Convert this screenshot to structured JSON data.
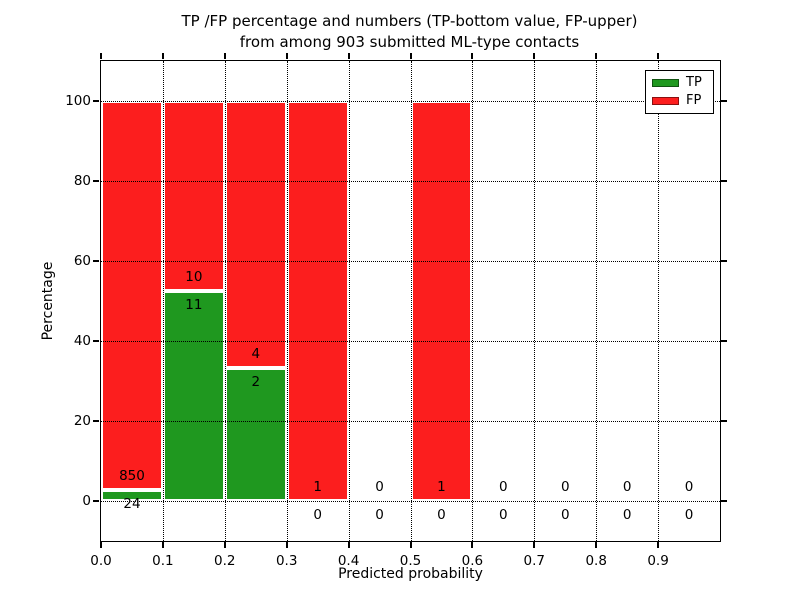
{
  "chart_data": {
    "type": "bar",
    "variant": "stacked-percentage-histogram",
    "title": "TP /FP percentage and numbers (TP-bottom value, FP-upper)\nfrom among 903 submitted ML-type contacts",
    "title_lines": [
      "TP /FP percentage and numbers (TP-bottom value, FP-upper)",
      "from among 903 submitted ML-type contacts"
    ],
    "xlabel": "Predicted probability",
    "ylabel": "Percentage",
    "xlim": [
      0.0,
      1.0
    ],
    "ylim": [
      -10,
      110
    ],
    "grid": "dotted",
    "yticks": [
      {
        "v": 0,
        "label": "0"
      },
      {
        "v": 20,
        "label": "20"
      },
      {
        "v": 40,
        "label": "40"
      },
      {
        "v": 60,
        "label": "60"
      },
      {
        "v": 80,
        "label": "80"
      },
      {
        "v": 100,
        "label": "100"
      }
    ],
    "xticks": [
      {
        "v": 0.0,
        "label": "0.0"
      },
      {
        "v": 0.1,
        "label": "0.1"
      },
      {
        "v": 0.2,
        "label": "0.2"
      },
      {
        "v": 0.3,
        "label": "0.3"
      },
      {
        "v": 0.4,
        "label": "0.4"
      },
      {
        "v": 0.5,
        "label": "0.5"
      },
      {
        "v": 0.6,
        "label": "0.6"
      },
      {
        "v": 0.7,
        "label": "0.7"
      },
      {
        "v": 0.8,
        "label": "0.8"
      },
      {
        "v": 0.9,
        "label": "0.9"
      }
    ],
    "legend": {
      "position": "upper right",
      "items": [
        {
          "label": "TP",
          "color": "#1f981f"
        },
        {
          "label": "FP",
          "color": "#fc1e1e"
        }
      ]
    },
    "bins": [
      {
        "x0": 0.0,
        "x1": 0.1,
        "tp": 24,
        "fp": 850
      },
      {
        "x0": 0.1,
        "x1": 0.2,
        "tp": 11,
        "fp": 10
      },
      {
        "x0": 0.2,
        "x1": 0.3,
        "tp": 2,
        "fp": 4
      },
      {
        "x0": 0.3,
        "x1": 0.4,
        "tp": 0,
        "fp": 1
      },
      {
        "x0": 0.4,
        "x1": 0.5,
        "tp": 0,
        "fp": 0
      },
      {
        "x0": 0.5,
        "x1": 0.6,
        "tp": 0,
        "fp": 1
      },
      {
        "x0": 0.6,
        "x1": 0.7,
        "tp": 0,
        "fp": 0
      },
      {
        "x0": 0.7,
        "x1": 0.8,
        "tp": 0,
        "fp": 0
      },
      {
        "x0": 0.8,
        "x1": 0.9,
        "tp": 0,
        "fp": 0
      },
      {
        "x0": 0.9,
        "x1": 1.0,
        "tp": 0,
        "fp": 0
      }
    ],
    "colors": {
      "tp": "#1f981f",
      "fp": "#fc1e1e",
      "bar_edge": "#ffffff",
      "grid": "#000000",
      "text": "#000000",
      "background": "#ffffff"
    }
  }
}
